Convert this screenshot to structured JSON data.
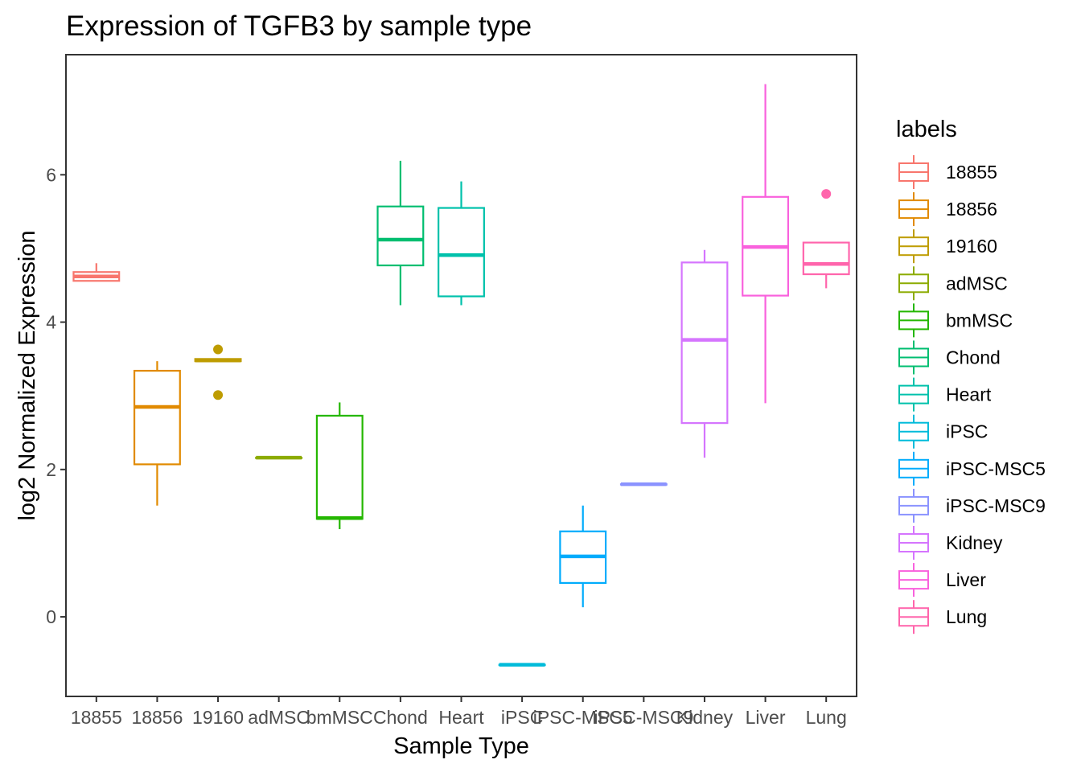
{
  "chart_data": {
    "type": "boxplot",
    "title": "Expression of TGFB3 by sample type",
    "xlabel": "Sample Type",
    "ylabel": "log2 Normalized Expression",
    "ylim": [
      -1.08,
      7.63
    ],
    "yticks": [
      0,
      2,
      4,
      6
    ],
    "grid": false,
    "legend": {
      "title": "labels",
      "position": "right"
    },
    "categories": [
      "18855",
      "18856",
      "19160",
      "adMSC",
      "bmMSC",
      "Chond",
      "Heart",
      "iPSC",
      "iPSC-MSC5",
      "iPSC-MSC9",
      "Kidney",
      "Liver",
      "Lung"
    ],
    "colors": [
      "#F8766D",
      "#E18A00",
      "#BE9C00",
      "#8CAB00",
      "#24B700",
      "#00BE70",
      "#00C1AB",
      "#00BBDA",
      "#00ACFC",
      "#8B93FF",
      "#D575FE",
      "#F962DD",
      "#FF65AC"
    ],
    "boxes": [
      {
        "label": "18855",
        "whisker_low": 4.56,
        "q1": 4.56,
        "median": 4.62,
        "q3": 4.68,
        "whisker_high": 4.8,
        "outliers": []
      },
      {
        "label": "18856",
        "whisker_low": 1.51,
        "q1": 2.07,
        "median": 2.85,
        "q3": 3.34,
        "whisker_high": 3.47,
        "outliers": []
      },
      {
        "label": "19160",
        "whisker_low": 3.47,
        "q1": 3.47,
        "median": 3.48,
        "q3": 3.5,
        "whisker_high": 3.5,
        "outliers": [
          3.63,
          3.01
        ]
      },
      {
        "label": "adMSC",
        "whisker_low": 2.16,
        "q1": 2.16,
        "median": 2.16,
        "q3": 2.16,
        "whisker_high": 2.16,
        "outliers": []
      },
      {
        "label": "bmMSC",
        "whisker_low": 1.19,
        "q1": 1.33,
        "median": 1.34,
        "q3": 2.73,
        "whisker_high": 2.91,
        "outliers": []
      },
      {
        "label": "Chond",
        "whisker_low": 4.23,
        "q1": 4.77,
        "median": 5.12,
        "q3": 5.57,
        "whisker_high": 6.19,
        "outliers": []
      },
      {
        "label": "Heart",
        "whisker_low": 4.23,
        "q1": 4.35,
        "median": 4.91,
        "q3": 5.55,
        "whisker_high": 5.91,
        "outliers": []
      },
      {
        "label": "iPSC",
        "whisker_low": -0.65,
        "q1": -0.65,
        "median": -0.65,
        "q3": -0.65,
        "whisker_high": -0.65,
        "outliers": []
      },
      {
        "label": "iPSC-MSC5",
        "whisker_low": 0.13,
        "q1": 0.46,
        "median": 0.82,
        "q3": 1.16,
        "whisker_high": 1.51,
        "outliers": []
      },
      {
        "label": "iPSC-MSC9",
        "whisker_low": 1.8,
        "q1": 1.8,
        "median": 1.8,
        "q3": 1.8,
        "whisker_high": 1.8,
        "outliers": []
      },
      {
        "label": "Kidney",
        "whisker_low": 2.16,
        "q1": 2.63,
        "median": 3.76,
        "q3": 4.81,
        "whisker_high": 4.98,
        "outliers": []
      },
      {
        "label": "Liver",
        "whisker_low": 2.9,
        "q1": 4.36,
        "median": 5.02,
        "q3": 5.7,
        "whisker_high": 7.23,
        "outliers": []
      },
      {
        "label": "Lung",
        "whisker_low": 4.46,
        "q1": 4.65,
        "median": 4.79,
        "q3": 5.08,
        "whisker_high": 5.08,
        "outliers": [
          5.74
        ]
      }
    ]
  }
}
